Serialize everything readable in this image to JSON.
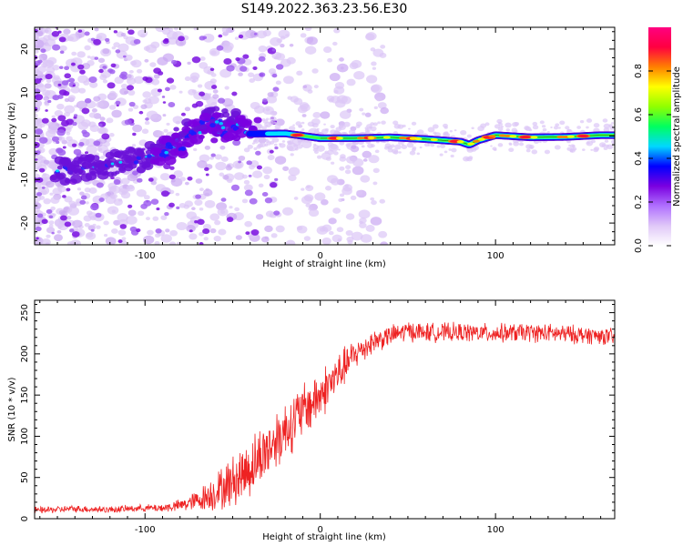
{
  "figure_title": "S149.2022.363.23.56.E30",
  "chart_data": [
    {
      "type": "heatmap",
      "title": "S149.2022.363.23.56.E30",
      "xlabel": "Height of straight line (km)",
      "ylabel": "Frequency (Hz)",
      "xlim": [
        -163,
        168
      ],
      "ylim": [
        -25,
        25
      ],
      "xticks": [
        -100,
        0,
        100
      ],
      "yticks": [
        -20,
        -10,
        0,
        10,
        20
      ],
      "xtick_labels": [
        "-100",
        "0",
        "100"
      ],
      "ytick_labels": [
        "-20",
        "-10",
        "0",
        "10",
        "20"
      ],
      "colorbar": {
        "label": "Normalized spectral amplitude",
        "range": [
          0,
          1
        ],
        "ticks": [
          0.0,
          0.2,
          0.4,
          0.6,
          0.8
        ],
        "tick_labels": [
          "0.0",
          "0.2",
          "0.4",
          "0.6",
          "0.8"
        ],
        "colors": [
          "#ffffff",
          "#e0c8f8",
          "#b070ff",
          "#7a00e0",
          "#0000ff",
          "#00d8ff",
          "#00ff60",
          "#90ff00",
          "#ffff00",
          "#ff8000",
          "#ff0040",
          "#ff0080"
        ]
      },
      "ridge": {
        "x": [
          -40,
          -20,
          0,
          20,
          40,
          60,
          80,
          85,
          90,
          100,
          120,
          140,
          160,
          168
        ],
        "y": [
          0.5,
          0.6,
          -0.5,
          -0.5,
          -0.3,
          -0.7,
          -1.3,
          -2.0,
          -1.0,
          0.2,
          -0.3,
          -0.2,
          0.2,
          0.2
        ]
      },
      "hot_spots_x": [
        -13,
        8,
        28,
        52,
        77,
        96,
        117,
        150
      ],
      "lower_feature": {
        "x": [
          -145,
          -120,
          -100,
          -85,
          -70,
          -60,
          -50
        ],
        "y": [
          -8,
          -6.5,
          -5,
          -2,
          2,
          4,
          3
        ]
      }
    },
    {
      "type": "line",
      "xlabel": "Height of straight line (km)",
      "ylabel": "SNR (10 * v/v)",
      "xlim": [
        -163,
        168
      ],
      "ylim": [
        0,
        265
      ],
      "xticks": [
        -100,
        0,
        100
      ],
      "yticks": [
        0,
        50,
        100,
        150,
        200,
        250
      ],
      "xtick_labels": [
        "-100",
        "0",
        "100"
      ],
      "ytick_labels": [
        "0",
        "50",
        "100",
        "150",
        "200",
        "250"
      ],
      "series": [
        {
          "name": "SNR",
          "color": "#ee2222",
          "x": [
            -163,
            -140,
            -120,
            -100,
            -90,
            -80,
            -70,
            -60,
            -50,
            -40,
            -30,
            -20,
            -10,
            0,
            10,
            20,
            30,
            40,
            50,
            60,
            80,
            100,
            120,
            140,
            160,
            168
          ],
          "y": [
            10,
            12,
            11,
            13,
            13,
            16,
            22,
            32,
            45,
            62,
            85,
            108,
            130,
            150,
            175,
            200,
            215,
            222,
            228,
            226,
            226,
            225,
            226,
            224,
            222,
            220
          ],
          "noise": [
            4,
            4,
            4,
            4,
            5,
            7,
            12,
            22,
            30,
            35,
            35,
            35,
            33,
            30,
            25,
            18,
            14,
            12,
            12,
            11,
            11,
            11,
            11,
            11,
            10,
            10
          ]
        }
      ]
    }
  ]
}
